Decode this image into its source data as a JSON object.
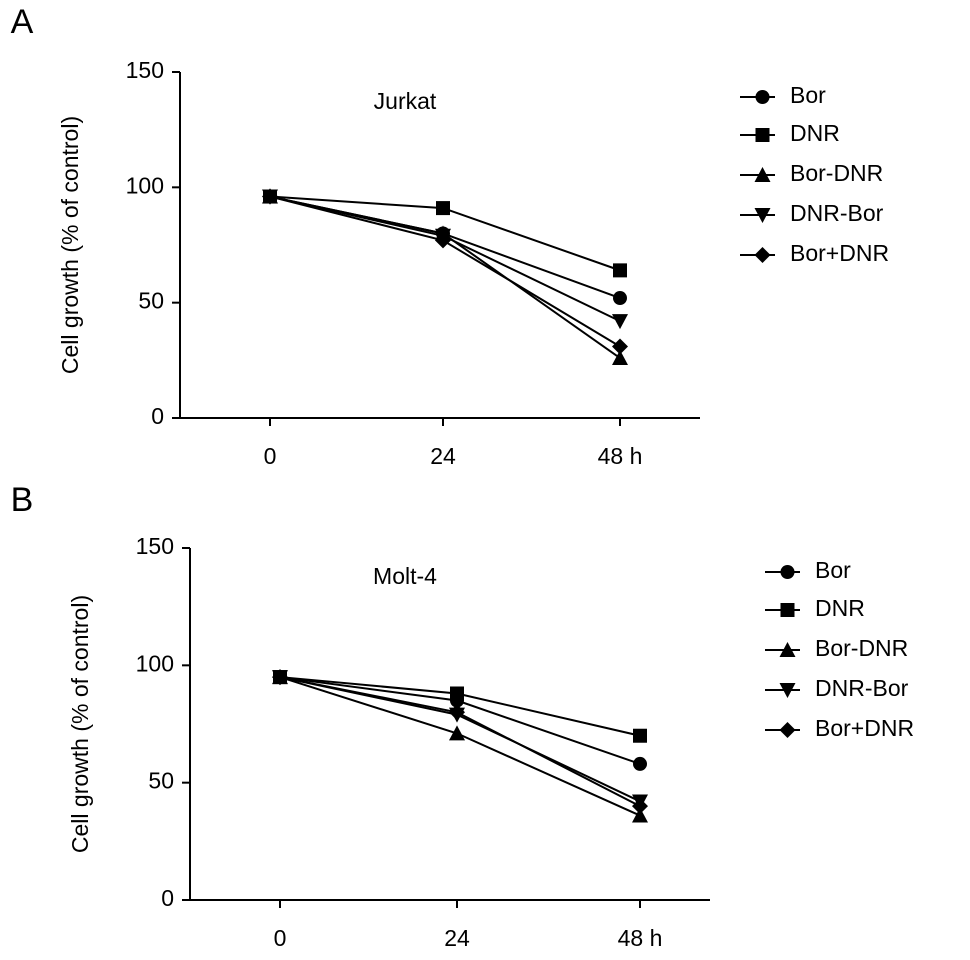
{
  "chart_data": [
    {
      "type": "line",
      "label": "A",
      "title": "Jurkat",
      "y_label": "Cell growth (% of control)",
      "categories": [
        "0",
        "24",
        "48 h"
      ],
      "ylim": [
        0,
        150
      ],
      "yticks": [
        0,
        50,
        100,
        150
      ],
      "series": [
        {
          "name": "Bor",
          "color": "#000000",
          "marker": "circle",
          "values": [
            96,
            80,
            52
          ]
        },
        {
          "name": "DNR",
          "color": "#000000",
          "marker": "square",
          "values": [
            96,
            91,
            64
          ]
        },
        {
          "name": "Bor-DNR",
          "color": "#000000",
          "marker": "triangle",
          "values": [
            96,
            80,
            26
          ]
        },
        {
          "name": "DNR-Bor",
          "color": "#000000",
          "marker": "triangle-down",
          "values": [
            96,
            79,
            42
          ]
        },
        {
          "name": "Bor+DNR",
          "color": "#000000",
          "marker": "diamond",
          "values": [
            96,
            77,
            31
          ]
        }
      ]
    },
    {
      "type": "line",
      "label": "B",
      "title": "Molt-4",
      "y_label": "Cell growth (% of control)",
      "categories": [
        "0",
        "24",
        "48 h"
      ],
      "ylim": [
        0,
        150
      ],
      "yticks": [
        0,
        50,
        100,
        150
      ],
      "series": [
        {
          "name": "Bor",
          "color": "#000000",
          "marker": "circle",
          "values": [
            95,
            85,
            58
          ]
        },
        {
          "name": "DNR",
          "color": "#000000",
          "marker": "square",
          "values": [
            95,
            88,
            70
          ]
        },
        {
          "name": "Bor-DNR",
          "color": "#000000",
          "marker": "triangle",
          "values": [
            95,
            71,
            36
          ]
        },
        {
          "name": "DNR-Bor",
          "color": "#000000",
          "marker": "triangle-down",
          "values": [
            95,
            79,
            42
          ]
        },
        {
          "name": "Bor+DNR",
          "color": "#000000",
          "marker": "diamond",
          "values": [
            95,
            80,
            40
          ]
        }
      ]
    }
  ]
}
